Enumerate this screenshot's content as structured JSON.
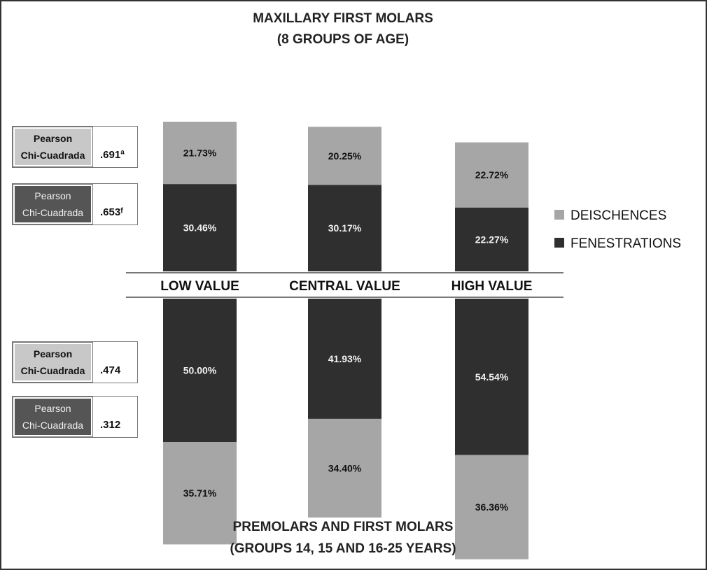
{
  "chart_data": {
    "type": "bar",
    "stacked": true,
    "title_top": [
      "MAXILLARY FIRST MOLARS",
      "(8 GROUPS OF AGE)"
    ],
    "title_bottom": [
      "PREMOLARS AND FIRST MOLARS",
      "(GROUPS  14, 15  AND 16-25 YEARS)"
    ],
    "categories": [
      "LOW VALUE",
      "CENTRAL VALUE",
      "HIGH VALUE"
    ],
    "legend": {
      "placement": "right",
      "items": [
        {
          "name": "DEISCHENCES",
          "color": "#a6a6a6"
        },
        {
          "name": "FENESTRATIONS",
          "color": "#2f2f2f"
        }
      ]
    },
    "panels": [
      {
        "name": "MAXILLARY FIRST MOLARS",
        "series": [
          {
            "name": "DEISCHENCES",
            "values": [
              21.73,
              20.25,
              22.72
            ],
            "labels": [
              "21.73%",
              "20.25%",
              "22.72%"
            ]
          },
          {
            "name": "FENESTRATIONS",
            "values": [
              30.46,
              30.17,
              22.27
            ],
            "labels": [
              "30.46%",
              "30.17%",
              "22.27%"
            ]
          }
        ]
      },
      {
        "name": "PREMOLARS AND FIRST MOLARS",
        "series": [
          {
            "name": "FENESTRATIONS",
            "values": [
              50.0,
              41.93,
              54.54
            ],
            "labels": [
              "50.00%",
              "41.93%",
              "54.54%"
            ]
          },
          {
            "name": "DEISCHENCES",
            "values": [
              35.71,
              34.4,
              36.36
            ],
            "labels": [
              "35.71%",
              "34.40%",
              "36.36%"
            ]
          }
        ]
      }
    ],
    "colors": {
      "deischences": "#a6a6a6",
      "fenestrations": "#2f2f2f",
      "label_dark": "#111111",
      "label_light": "#f2f2f2"
    }
  },
  "stats": [
    {
      "name_line1": "Pearson",
      "name_line2": "Chi-Cuadrada",
      "value": ".691ª",
      "style": "light"
    },
    {
      "name_line1": "Pearson",
      "name_line2": "Chi-Cuadrada",
      "value": ".653ᶠ",
      "style": "dark"
    },
    {
      "name_line1": "Pearson",
      "name_line2": "Chi-Cuadrada",
      "value": ".474",
      "style": "light"
    },
    {
      "name_line1": "Pearson",
      "name_line2": "Chi-Cuadrada",
      "value": ".312",
      "style": "dark"
    }
  ]
}
